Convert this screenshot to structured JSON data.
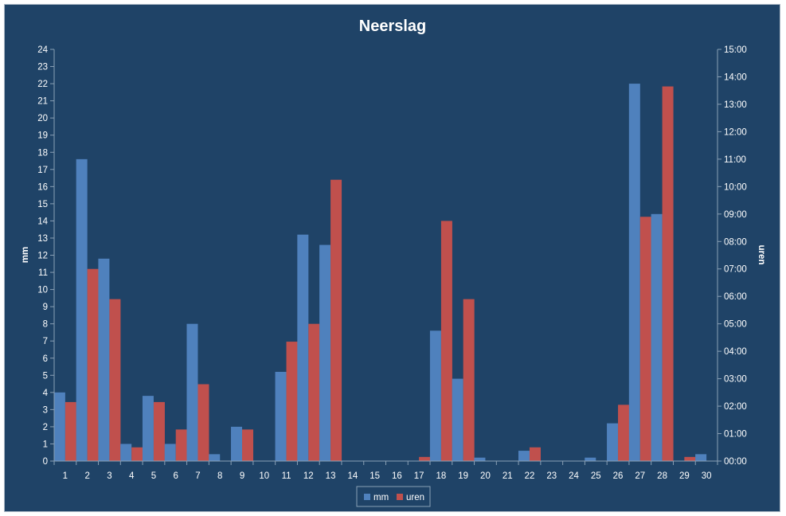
{
  "chart_data": {
    "type": "bar",
    "title": "Neerslag",
    "xlabel": "",
    "ylabel": "mm",
    "y2label": "uren",
    "ylim": [
      0,
      24
    ],
    "y2lim_hours": [
      0,
      15
    ],
    "categories": [
      "1",
      "2",
      "3",
      "4",
      "5",
      "6",
      "7",
      "8",
      "9",
      "10",
      "11",
      "12",
      "13",
      "14",
      "15",
      "16",
      "17",
      "18",
      "19",
      "20",
      "21",
      "22",
      "23",
      "24",
      "25",
      "26",
      "27",
      "28",
      "29",
      "30"
    ],
    "y_ticks": [
      "0",
      "1",
      "2",
      "3",
      "4",
      "5",
      "6",
      "7",
      "8",
      "9",
      "10",
      "11",
      "12",
      "13",
      "14",
      "15",
      "16",
      "17",
      "18",
      "19",
      "20",
      "21",
      "22",
      "23",
      "24"
    ],
    "y2_ticks": [
      "00:00",
      "01:00",
      "02:00",
      "03:00",
      "04:00",
      "05:00",
      "06:00",
      "07:00",
      "08:00",
      "09:00",
      "10:00",
      "11:00",
      "12:00",
      "13:00",
      "14:00",
      "15:00"
    ],
    "series": [
      {
        "name": "mm",
        "axis": "left",
        "color": "#4f81bd",
        "values": [
          4.0,
          17.6,
          11.8,
          1.0,
          3.8,
          1.0,
          8.0,
          0.4,
          2.0,
          0,
          5.2,
          13.2,
          12.6,
          0,
          0,
          0,
          0,
          7.6,
          4.8,
          0.2,
          0,
          0.6,
          0,
          0,
          0.2,
          2.2,
          22.0,
          14.4,
          0,
          0.4
        ]
      },
      {
        "name": "uren",
        "axis": "right",
        "unit": "hours",
        "color": "#c0504d",
        "values": [
          2.15,
          7.0,
          5.9,
          0.5,
          2.15,
          1.15,
          2.8,
          0,
          1.15,
          0,
          4.35,
          5.0,
          10.25,
          0,
          0,
          0,
          0.15,
          8.75,
          5.9,
          0,
          0,
          0.5,
          0,
          0,
          0,
          2.05,
          8.9,
          13.65,
          0.15,
          0
        ]
      }
    ],
    "grid": false,
    "legend": "bottom-center"
  }
}
